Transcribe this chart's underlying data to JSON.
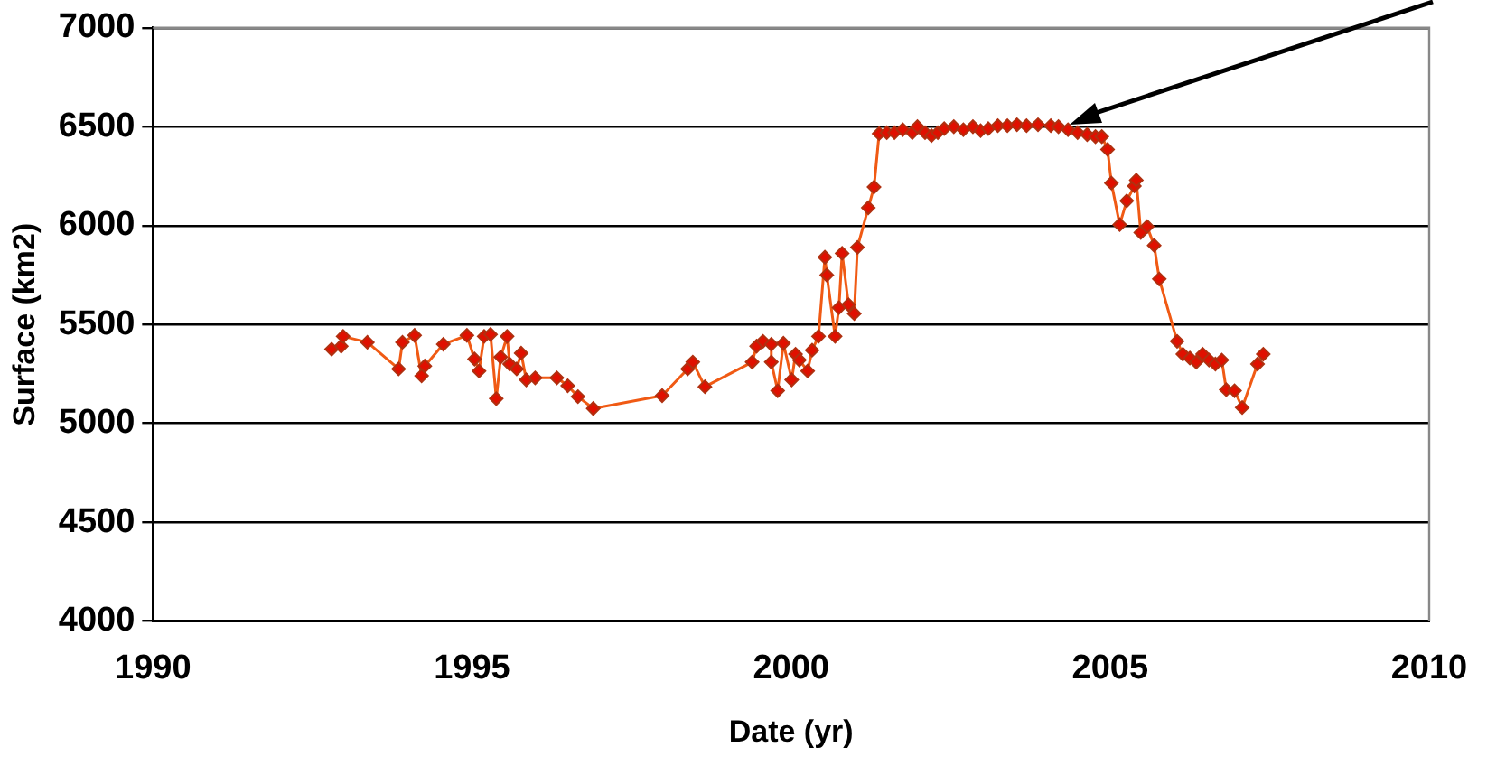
{
  "chart_data": {
    "type": "line",
    "xlabel": "Date (yr)",
    "ylabel": "Surface (km2)",
    "xlim": [
      1990,
      2010
    ],
    "xticks": [
      1990,
      1995,
      2000,
      2005,
      2010
    ],
    "ylim": [
      4000,
      7000
    ],
    "yticks": [
      4000,
      4500,
      5000,
      5500,
      6000,
      6500,
      7000
    ],
    "grid": "y",
    "legend": false,
    "marker": "diamond",
    "line_style": "solid",
    "series": [
      {
        "color": "#f05a14",
        "x": [
          1992.8,
          1992.95,
          1992.98,
          1993.36,
          1993.85,
          1993.91,
          1994.1,
          1994.21,
          1994.26,
          1994.55,
          1994.92,
          1995.04,
          1995.11,
          1995.19,
          1995.29,
          1995.38,
          1995.45,
          1995.55,
          1995.59,
          1995.7,
          1995.77,
          1995.85,
          1995.99,
          1996.33,
          1996.5,
          1996.66,
          1996.9,
          1997.98,
          1998.38,
          1998.46,
          1998.65,
          1999.39,
          1999.46,
          1999.56,
          1999.69,
          1999.69,
          1999.79,
          1999.88,
          2000.01,
          2000.07,
          2000.13,
          2000.26,
          2000.33,
          2000.43,
          2000.53,
          2000.56,
          2000.69,
          2000.75,
          2000.8,
          2000.9,
          2000.99,
          2001.04,
          2001.21,
          2001.3,
          2001.38,
          2001.5,
          2001.62,
          2001.75,
          2001.9,
          2001.98,
          2002.1,
          2002.2,
          2002.3,
          2002.4,
          2002.55,
          2002.7,
          2002.85,
          2002.97,
          2003.09,
          2003.24,
          2003.39,
          2003.54,
          2003.69,
          2003.87,
          2004.07,
          2004.19,
          2004.34,
          2004.49,
          2004.64,
          2004.77,
          2004.87,
          2004.96,
          2005.02,
          2005.15,
          2005.26,
          2005.38,
          2005.41,
          2005.48,
          2005.58,
          2005.69,
          2005.77,
          2006.05,
          2006.14,
          2006.25,
          2006.35,
          2006.45,
          2006.55,
          2006.65,
          2006.75,
          2006.82,
          2006.95,
          2007.07,
          2007.31,
          2007.4
        ],
        "values": [
          5375,
          5390,
          5440,
          5410,
          5275,
          5410,
          5445,
          5240,
          5290,
          5400,
          5445,
          5325,
          5265,
          5440,
          5450,
          5125,
          5335,
          5440,
          5300,
          5275,
          5355,
          5220,
          5230,
          5230,
          5190,
          5135,
          5075,
          5140,
          5275,
          5310,
          5185,
          5310,
          5390,
          5415,
          5400,
          5310,
          5165,
          5405,
          5220,
          5350,
          5320,
          5265,
          5370,
          5440,
          5840,
          5750,
          5440,
          5585,
          5860,
          5600,
          5555,
          5890,
          6090,
          6195,
          6465,
          6470,
          6470,
          6485,
          6470,
          6500,
          6470,
          6455,
          6470,
          6490,
          6500,
          6485,
          6500,
          6480,
          6490,
          6505,
          6505,
          6510,
          6505,
          6510,
          6505,
          6500,
          6485,
          6470,
          6460,
          6450,
          6450,
          6385,
          6215,
          6005,
          6125,
          6200,
          6230,
          5965,
          5995,
          5900,
          5730,
          5415,
          5350,
          5330,
          5310,
          5350,
          5320,
          5300,
          5320,
          5170,
          5165,
          5080,
          5300,
          5350
        ]
      }
    ]
  }
}
